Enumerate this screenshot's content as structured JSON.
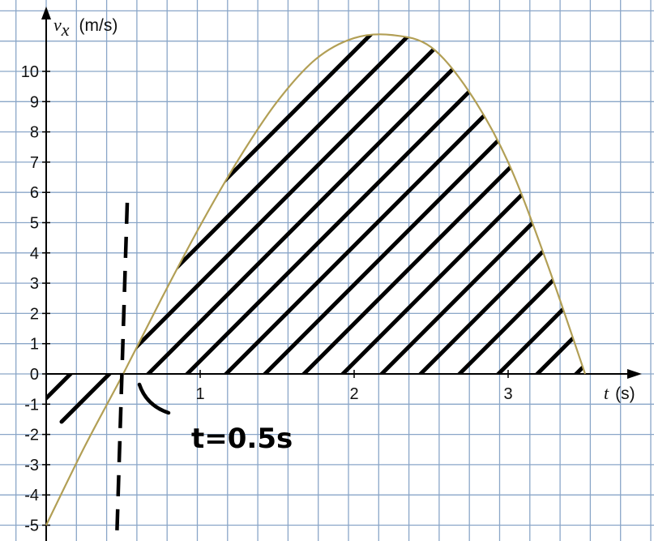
{
  "chart_data": {
    "type": "area",
    "y_symbol": "v",
    "y_subscript": "x",
    "y_unit": "(m/s)",
    "x_symbol": "t",
    "x_unit": "(s)",
    "xlim": [
      0,
      3.6
    ],
    "ylim": [
      -5,
      11.3
    ],
    "x_ticks": [
      1,
      2,
      3
    ],
    "x_tick_labels": [
      "1",
      "2",
      "3"
    ],
    "y_ticks": [
      10,
      9,
      8,
      7,
      6,
      5,
      4,
      3,
      2,
      1,
      0,
      -1,
      -2,
      -3,
      -4,
      -5
    ],
    "y_tick_labels": [
      "10",
      "9",
      "8",
      "7",
      "6",
      "5",
      "4",
      "3",
      "2",
      "1",
      "0",
      "-1",
      "-2",
      "-3",
      "-4",
      "-5"
    ],
    "grid": true,
    "grid_color": "#8aa6c8",
    "curve_color": "#b29f55",
    "series": [
      {
        "x": [
          0,
          0.25,
          0.5,
          0.75,
          1.0,
          1.25,
          1.5,
          1.75,
          2.0,
          2.25,
          2.5,
          2.75,
          3.0,
          3.25,
          3.5
        ],
        "y": [
          -5.0,
          -2.4,
          0.0,
          2.5,
          4.9,
          7.1,
          9.0,
          10.4,
          11.1,
          11.2,
          10.8,
          9.3,
          7.0,
          3.7,
          0.0
        ]
      }
    ],
    "annotations": [
      {
        "text": "t=0.5s",
        "x": 0.5
      }
    ]
  }
}
